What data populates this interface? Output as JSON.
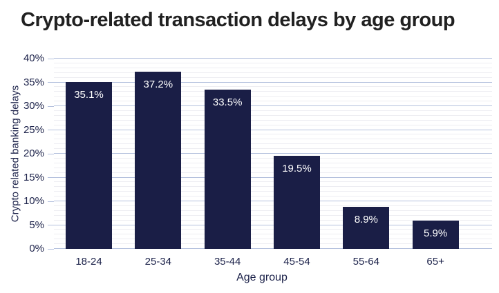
{
  "title": "Crypto-related transaction delays by age group",
  "chart_data": {
    "type": "bar",
    "title": "Crypto-related transaction delays by age group",
    "categories": [
      "18-24",
      "25-34",
      "35-44",
      "45-54",
      "55-64",
      "65+"
    ],
    "values": [
      35.1,
      37.2,
      33.5,
      19.5,
      8.9,
      5.9
    ],
    "data_labels": [
      "35.1%",
      "37.2%",
      "33.5%",
      "19.5%",
      "8.9%",
      "5.9%"
    ],
    "xlabel": "Age group",
    "ylabel": "Crypto related banking delays",
    "ylim": [
      0,
      40
    ],
    "y_tick_labels": [
      "0%",
      "5%",
      "10%",
      "15%",
      "20%",
      "25%",
      "30%",
      "35%",
      "40%"
    ],
    "y_tick_values": [
      0,
      5,
      10,
      15,
      20,
      25,
      30,
      35,
      40
    ],
    "minor_grid_step": 1,
    "major_grid_step": 5,
    "grid": "horizontal major and minor",
    "legend_position": "none",
    "colors": {
      "bar": "#1a1e46",
      "title_text": "#212121",
      "axis_text": "#1b2149",
      "grid_major": "#b3c0dd",
      "grid_minor": "#ededf2",
      "data_label_text": "#ffffff",
      "background": "#ffffff"
    }
  }
}
